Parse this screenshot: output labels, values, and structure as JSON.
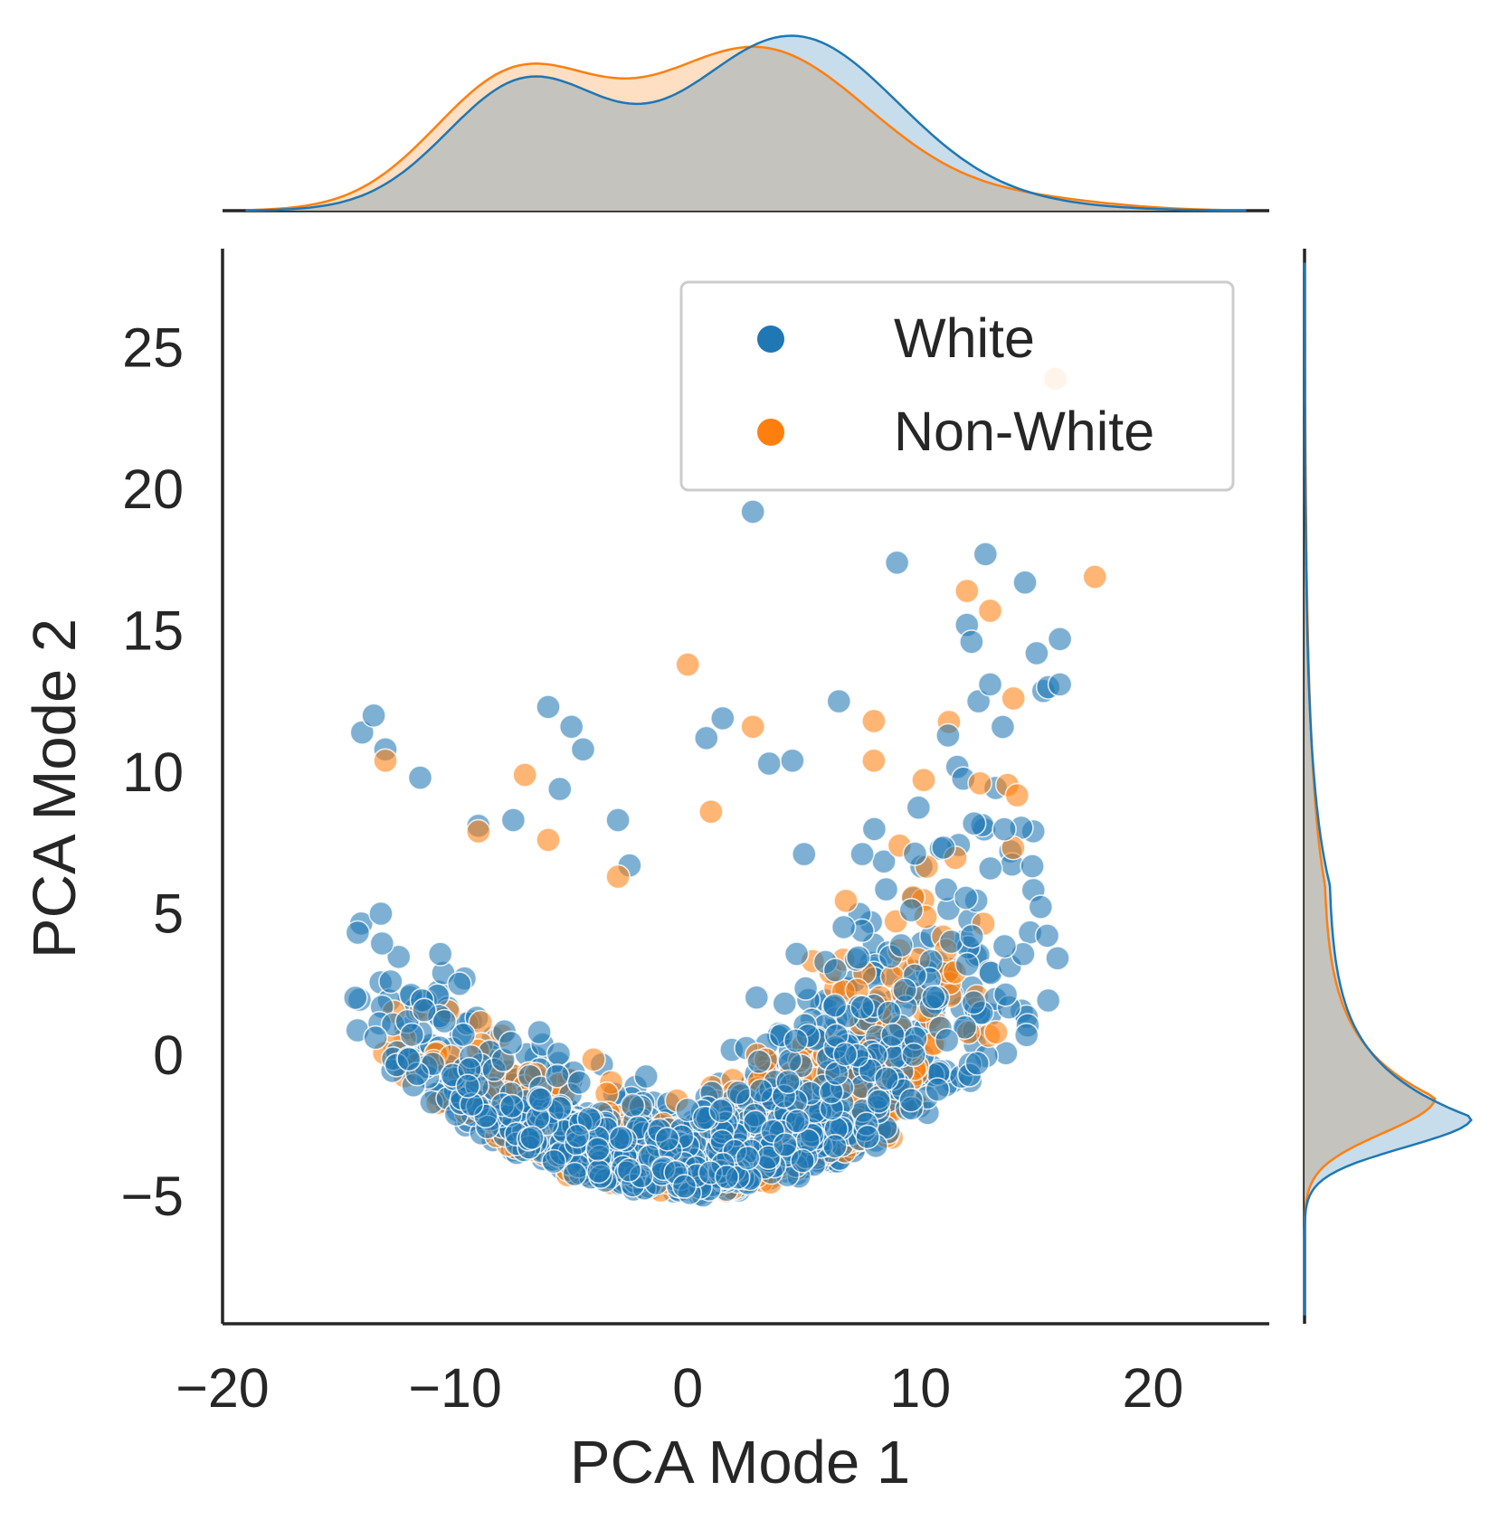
{
  "chart_data": {
    "type": "scatter",
    "subtype": "jointplot-with-kde-marginals",
    "xlabel": "PCA Mode 1",
    "ylabel": "PCA Mode 2",
    "xlim": [
      -20,
      25
    ],
    "ylim": [
      -9.5,
      28.5
    ],
    "x_ticks": [
      -20,
      -10,
      0,
      10,
      20
    ],
    "x_tick_labels": [
      "−20",
      "−10",
      "0",
      "10",
      "20"
    ],
    "y_ticks": [
      -5,
      0,
      5,
      10,
      15,
      20,
      25
    ],
    "y_tick_labels": [
      "−5",
      "0",
      "5",
      "10",
      "15",
      "20",
      "25"
    ],
    "grid": false,
    "legend": {
      "position": "upper right",
      "entries": [
        "White",
        "Non-White"
      ]
    },
    "colors": {
      "White": "#1f77b4",
      "Non-White": "#ff7f0e",
      "overlap": "#c4c3bd"
    },
    "series": [
      {
        "name": "White",
        "cluster": {
          "approx_count": 1500,
          "x_range": [
            -14.5,
            16
          ],
          "y_floor": "y ≈ -5 + 0.026 · x²",
          "note": "dense parabolic band, center near x ≈ 0, y ≈ -3"
        },
        "outliers": [
          [
            -14,
            11.4
          ],
          [
            -13.5,
            12
          ],
          [
            -13,
            10.8
          ],
          [
            -11.5,
            9.8
          ],
          [
            -9,
            8.1
          ],
          [
            -7.5,
            8.3
          ],
          [
            -6,
            12.3
          ],
          [
            -5,
            11.6
          ],
          [
            -5.5,
            9.4
          ],
          [
            -4.5,
            10.8
          ],
          [
            -3,
            8.3
          ],
          [
            -2.5,
            6.7
          ],
          [
            0.8,
            11.2
          ],
          [
            1.5,
            11.9
          ],
          [
            2.8,
            19.2
          ],
          [
            3.5,
            10.3
          ],
          [
            4.5,
            10.4
          ],
          [
            5,
            7.1
          ],
          [
            6.5,
            12.5
          ],
          [
            7.5,
            7.1
          ],
          [
            9,
            17.4
          ],
          [
            12,
            15.2
          ],
          [
            12.2,
            14.6
          ],
          [
            12.5,
            12.5
          ],
          [
            12.8,
            17.7
          ],
          [
            13,
            13.1
          ],
          [
            14.5,
            16.7
          ],
          [
            15,
            14.2
          ],
          [
            15.5,
            13
          ],
          [
            16,
            14.7
          ],
          [
            16,
            13.1
          ]
        ]
      },
      {
        "name": "Non-White",
        "cluster": {
          "approx_count": 450,
          "x_range": [
            -13.5,
            14.5
          ],
          "note": "interleaved within the same band, slightly right-shifted"
        },
        "outliers": [
          [
            -13,
            10.4
          ],
          [
            -9,
            7.9
          ],
          [
            -7,
            9.9
          ],
          [
            -6,
            7.6
          ],
          [
            -3,
            6.3
          ],
          [
            0,
            13.8
          ],
          [
            1,
            8.6
          ],
          [
            2.8,
            11.6
          ],
          [
            8,
            11.8
          ],
          [
            8,
            10.4
          ],
          [
            12,
            16.4
          ],
          [
            13,
            15.7
          ],
          [
            14,
            12.6
          ],
          [
            15.8,
            23.9
          ],
          [
            17.5,
            16.9
          ]
        ]
      }
    ],
    "marginal_x": {
      "type": "kde",
      "White": {
        "peaks": [
          [
            -7,
            0.72
          ],
          [
            4.5,
            1.0
          ]
        ],
        "trough": [
          -3,
          0.67
        ]
      },
      "Non-White": {
        "peaks": [
          [
            -7.5,
            0.73
          ],
          [
            3,
            0.93
          ]
        ],
        "trough": [
          -3,
          0.64
        ]
      }
    },
    "marginal_y": {
      "type": "kde",
      "White": {
        "peak": [
          -2.2,
          1.0
        ]
      },
      "Non-White": {
        "peak": [
          -1.5,
          0.78
        ]
      }
    }
  }
}
